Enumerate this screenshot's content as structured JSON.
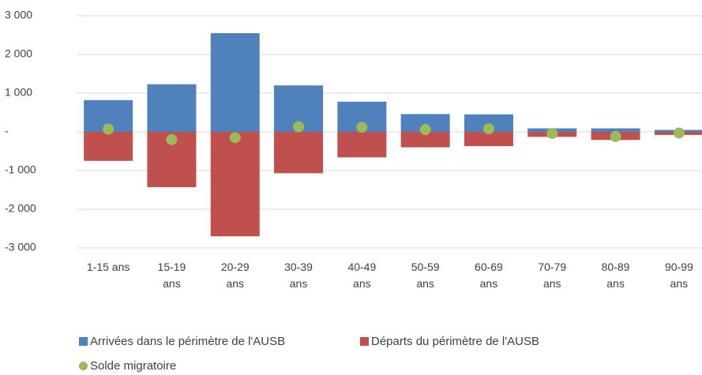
{
  "chart_data": {
    "type": "bar",
    "stacked": true,
    "categories": [
      "1-15 ans",
      "15-19 ans",
      "20-29 ans",
      "30-39 ans",
      "40-49 ans",
      "50-59 ans",
      "60-69 ans",
      "70-79 ans",
      "80-89 ans",
      "90-99 ans"
    ],
    "series": [
      {
        "name": "Arrivées dans le périmètre de l'AUSB",
        "color": "#4f81bd",
        "values": [
          820,
          1230,
          2550,
          1200,
          780,
          460,
          450,
          90,
          90,
          50
        ]
      },
      {
        "name": "Départs du périmètre de l'AUSB",
        "color": "#c0504d",
        "values": [
          -750,
          -1430,
          -2700,
          -1070,
          -660,
          -400,
          -370,
          -130,
          -210,
          -80
        ]
      },
      {
        "name": "Solde migratoire",
        "color": "#9bbb59",
        "marker": "circle",
        "values": [
          70,
          -200,
          -150,
          130,
          120,
          60,
          80,
          -40,
          -120,
          -30
        ]
      }
    ],
    "ylim": [
      -3000,
      3000
    ],
    "yticks": [
      {
        "value": -3000,
        "label": "-3 000"
      },
      {
        "value": -2000,
        "label": "-2 000"
      },
      {
        "value": -1000,
        "label": "-1 000"
      },
      {
        "value": 0,
        "label": "-"
      },
      {
        "value": 1000,
        "label": "1 000"
      },
      {
        "value": 2000,
        "label": "2 000"
      },
      {
        "value": 3000,
        "label": "3 000"
      }
    ],
    "grid": true,
    "legend": "bottom"
  }
}
